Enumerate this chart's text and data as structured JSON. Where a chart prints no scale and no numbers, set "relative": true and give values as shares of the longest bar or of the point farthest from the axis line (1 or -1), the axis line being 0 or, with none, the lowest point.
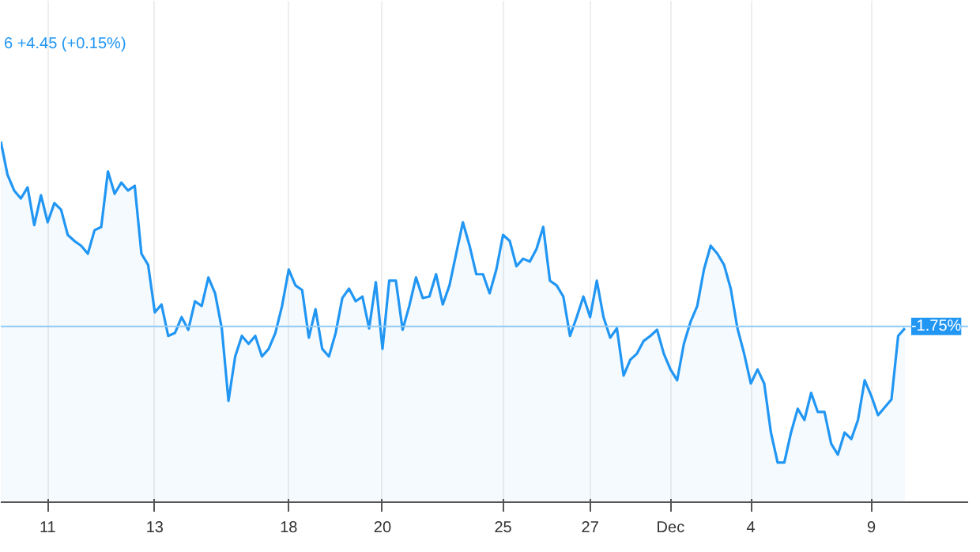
{
  "chart_data": {
    "type": "area",
    "relative": true,
    "categories": [
      null,
      null,
      null,
      null,
      null,
      null,
      null,
      "11",
      null,
      null,
      null,
      null,
      null,
      null,
      null,
      null,
      null,
      null,
      null,
      null,
      null,
      null,
      null,
      "13",
      null,
      null,
      null,
      null,
      null,
      null,
      null,
      null,
      null,
      null,
      null,
      null,
      null,
      null,
      null,
      null,
      null,
      null,
      null,
      "18",
      null,
      null,
      null,
      null,
      null,
      null,
      null,
      null,
      null,
      null,
      null,
      null,
      null,
      "20",
      null,
      null,
      null,
      null,
      null,
      null,
      null,
      null,
      null,
      null,
      null,
      null,
      null,
      null,
      null,
      null,
      null,
      "25",
      null,
      null,
      null,
      null,
      null,
      null,
      null,
      null,
      null,
      null,
      null,
      null,
      "27",
      null,
      null,
      null,
      null,
      null,
      null,
      null,
      null,
      null,
      null,
      null,
      "Dec",
      null,
      null,
      null,
      null,
      null,
      null,
      null,
      null,
      null,
      null,
      null,
      "4",
      null,
      null,
      null,
      null,
      null,
      null,
      null,
      null,
      null,
      null,
      null,
      null,
      null,
      null,
      null,
      null,
      null,
      "9",
      null,
      null,
      null,
      null,
      null
    ],
    "series": [
      {
        "color": "#2196f3",
        "values": [
          1.0,
          0.908,
          0.864,
          0.842,
          0.873,
          0.768,
          0.851,
          0.776,
          0.829,
          0.811,
          0.741,
          0.724,
          0.711,
          0.689,
          0.754,
          0.763,
          0.917,
          0.855,
          0.886,
          0.864,
          0.877,
          0.689,
          0.658,
          0.526,
          0.548,
          0.461,
          0.469,
          0.513,
          0.478,
          0.557,
          0.544,
          0.623,
          0.579,
          0.482,
          0.281,
          0.404,
          0.461,
          0.439,
          0.461,
          0.404,
          0.425,
          0.469,
          0.544,
          0.645,
          0.601,
          0.588,
          0.456,
          0.535,
          0.425,
          0.404,
          0.469,
          0.566,
          0.592,
          0.557,
          0.57,
          0.482,
          0.61,
          0.425,
          0.614,
          0.614,
          0.478,
          0.544,
          0.623,
          0.566,
          0.57,
          0.632,
          0.548,
          0.601,
          0.689,
          0.776,
          0.711,
          0.632,
          0.632,
          0.579,
          0.645,
          0.741,
          0.724,
          0.654,
          0.675,
          0.667,
          0.702,
          0.763,
          0.614,
          0.601,
          0.57,
          0.461,
          0.513,
          0.57,
          0.513,
          0.614,
          0.513,
          0.456,
          0.482,
          0.351,
          0.395,
          0.412,
          0.447,
          0.461,
          0.478,
          0.412,
          0.368,
          0.338,
          0.439,
          0.5,
          0.544,
          0.645,
          0.711,
          0.689,
          0.658,
          0.592,
          0.482,
          0.412,
          0.329,
          0.368,
          0.329,
          0.193,
          0.11,
          0.11,
          0.193,
          0.259,
          0.228,
          0.303,
          0.25,
          0.25,
          0.162,
          0.132,
          0.193,
          0.175,
          0.228,
          0.338,
          0.294,
          0.241,
          0.263,
          0.285,
          0.461,
          0.482
        ]
      }
    ],
    "grid": "x",
    "ref_lines": [
      {
        "axis": "y",
        "value": 0.487,
        "color": "#90caf9"
      }
    ],
    "annotations": [
      "6 +4.45 (+0.15%)",
      {
        "text": "-1.75%",
        "y": 0.487
      }
    ]
  }
}
